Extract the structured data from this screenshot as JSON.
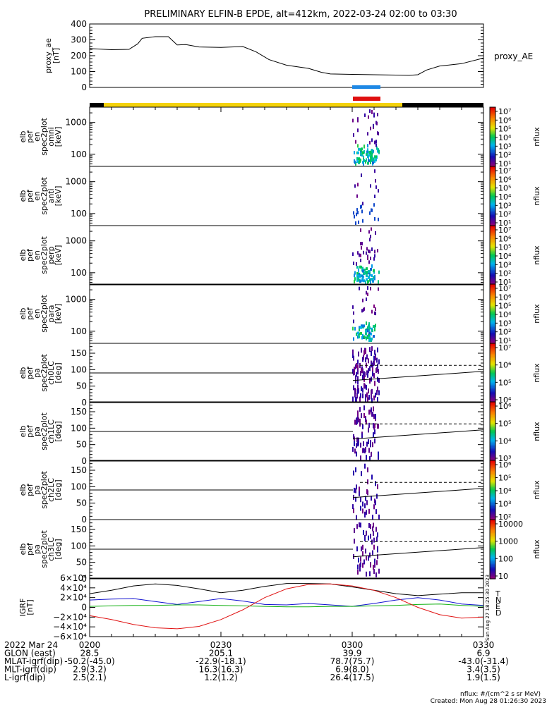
{
  "title": "PRELIMINARY ELFIN-B EPDE, alt=412km, 2022-03-24 02:00 to 03:30",
  "colors": {
    "ae_line": "#000000",
    "bar_blue": "#1e88e5",
    "bar_red": "#e01010",
    "orbit_yellow": "#f4d20c",
    "orbit_black": "#000000",
    "T": "#000000",
    "N": "#1010d0",
    "E": "#10b010",
    "D": "#e01010"
  },
  "chart_data": [
    {
      "type": "line",
      "title": "",
      "ylabel": [
        "proxy_ae",
        "[nT]"
      ],
      "legend": "proxy_AE",
      "ylim": [
        0,
        400
      ],
      "yticks": [
        "400",
        "300",
        "200",
        "100",
        "0"
      ],
      "x_minutes": [
        0,
        5,
        9,
        11,
        12,
        15,
        18,
        20,
        22,
        25,
        30,
        35,
        38,
        41,
        45,
        50,
        53,
        55,
        60,
        65,
        70,
        73,
        75,
        77,
        80,
        85,
        90
      ],
      "values": [
        245,
        238,
        240,
        275,
        310,
        320,
        320,
        268,
        270,
        255,
        252,
        258,
        225,
        175,
        140,
        120,
        95,
        85,
        82,
        80,
        78,
        76,
        80,
        110,
        135,
        150,
        185
      ]
    },
    {
      "type": "heatmap",
      "panels": [
        {
          "ylabel": [
            "elb",
            "pef",
            "en",
            "spec2plot",
            "omni",
            "[keV]"
          ],
          "yticks": [
            "1000",
            "100"
          ],
          "cbar_label": "nflux",
          "cbar_ticks": [
            "10⁷",
            "10⁶",
            "10⁵",
            "10⁴",
            "10³",
            "10²",
            "10¹"
          ],
          "log": true
        },
        {
          "ylabel": [
            "elb",
            "pef",
            "en",
            "spec2plot",
            "anti",
            "[keV]"
          ],
          "yticks": [
            "1000",
            "100"
          ],
          "cbar_label": "nflux",
          "cbar_ticks": [
            "10⁷",
            "10⁶",
            "10⁵",
            "10⁴",
            "10³",
            "10²",
            "10¹"
          ],
          "log": true
        },
        {
          "ylabel": [
            "elb",
            "pef",
            "en",
            "spec2plot",
            "perp",
            "[keV]"
          ],
          "yticks": [
            "1000",
            "100"
          ],
          "cbar_label": "nflux",
          "cbar_ticks": [
            "10⁷",
            "10⁶",
            "10⁵",
            "10⁴",
            "10³",
            "10²",
            "10¹"
          ],
          "log": true
        },
        {
          "ylabel": [
            "elb",
            "pef",
            "en",
            "spec2plot",
            "para",
            "[keV]"
          ],
          "yticks": [
            "1000",
            "100"
          ],
          "cbar_label": "nflux",
          "cbar_ticks": [
            "10⁷",
            "10⁶",
            "10⁵",
            "10⁴",
            "10³",
            "10²",
            "10¹"
          ],
          "log": true
        },
        {
          "ylabel": [
            "elb",
            "pef",
            "pa",
            "spec2plot",
            "ch0LC",
            "[deg]"
          ],
          "yticks": [
            "150",
            "100",
            "50",
            "0"
          ],
          "cbar_label": "nflux",
          "cbar_ticks": [
            "10⁷",
            "10⁶",
            "10⁵",
            "10⁴"
          ],
          "log": true
        },
        {
          "ylabel": [
            "elb",
            "pef",
            "pa",
            "spec2plot",
            "ch1LC",
            "[deg]"
          ],
          "yticks": [
            "150",
            "100",
            "50",
            "0"
          ],
          "cbar_label": "nflux",
          "cbar_ticks": [
            "10⁶",
            "10⁵",
            "10⁴",
            "10³"
          ],
          "log": true
        },
        {
          "ylabel": [
            "elb",
            "pef",
            "pa",
            "spec2plot",
            "ch2LC",
            "[deg]"
          ],
          "yticks": [
            "150",
            "100",
            "50",
            "0"
          ],
          "cbar_label": "nflux",
          "cbar_ticks": [
            "10⁶",
            "10⁵",
            "10⁴",
            "10³",
            "10²"
          ],
          "log": true
        },
        {
          "ylabel": [
            "elb",
            "pef",
            "pa",
            "spec2plot",
            "ch3LC",
            "[deg]"
          ],
          "yticks": [
            "150",
            "100",
            "50",
            "0"
          ],
          "cbar_label": "nflux",
          "cbar_ticks": [
            "10000",
            "1000",
            "100",
            "10"
          ],
          "log": true
        }
      ]
    },
    {
      "type": "line",
      "title": "",
      "ylabel": [
        "IGRF",
        "[nT]"
      ],
      "ylim": [
        -60000,
        60000
      ],
      "yticks": [
        "6×10⁴",
        "4×10⁴",
        "2×10⁴",
        "0",
        "−2×10⁴",
        "−4×10⁴",
        "−6×10⁴"
      ],
      "legend": [
        "T",
        "N",
        "E",
        "D"
      ],
      "x_minutes": [
        0,
        5,
        10,
        15,
        20,
        25,
        30,
        35,
        40,
        45,
        50,
        55,
        60,
        65,
        70,
        75,
        80,
        85,
        90
      ],
      "series": [
        {
          "name": "T",
          "values": [
            28000,
            35000,
            44000,
            48000,
            45000,
            38000,
            30000,
            35000,
            43000,
            49000,
            49000,
            48000,
            42000,
            35000,
            28000,
            24000,
            27000,
            30000,
            30000
          ]
        },
        {
          "name": "N",
          "values": [
            15000,
            17000,
            18000,
            12000,
            6000,
            12000,
            18000,
            13000,
            6000,
            5000,
            8000,
            5000,
            2000,
            8000,
            15000,
            20000,
            15000,
            7000,
            4000
          ]
        },
        {
          "name": "E",
          "values": [
            2000,
            3000,
            4000,
            4000,
            5000,
            5000,
            4000,
            3000,
            2000,
            1000,
            1000,
            2000,
            2000,
            3000,
            4000,
            6000,
            7000,
            4000,
            2000
          ]
        },
        {
          "name": "D",
          "values": [
            -17000,
            -25000,
            -35000,
            -42000,
            -44000,
            -39000,
            -25000,
            -5000,
            20000,
            38000,
            47000,
            48000,
            44000,
            35000,
            20000,
            0,
            -15000,
            -22000,
            -20000
          ]
        }
      ]
    }
  ],
  "x_axis": {
    "tick_labels": [
      "0200",
      "0230",
      "0300",
      "0330"
    ],
    "rows": [
      {
        "label": "2022 Mar 24",
        "values": [
          "0200",
          "0230",
          "0300",
          "0330"
        ]
      },
      {
        "label": "GLON (east)",
        "values": [
          "28.5",
          "205.1",
          "39.9",
          "6.9"
        ]
      },
      {
        "label": "MLAT-igrf(dip)",
        "values": [
          "-50.2(-45.0)",
          "-22.9(-18.1)",
          "78.7(75.7)",
          "-43.0(-31.4)"
        ]
      },
      {
        "label": "MLT-igrf(dip)",
        "values": [
          "2.9(3.2)",
          "16.3(16.3)",
          "6.9(8.0)",
          "3.4(3.5)"
        ]
      },
      {
        "label": "L-igrf(dip)",
        "values": [
          "2.5(2.1)",
          "1.2(1.2)",
          "26.4(17.5)",
          "1.9(1.5)"
        ]
      }
    ]
  },
  "side_stamp": "Sun Aug 27 18:25:30 2023",
  "footer": {
    "units": "nflux: #/(cm^2 s sr MeV)",
    "created": "Created: Mon Aug 28 01:26:30 2023"
  }
}
